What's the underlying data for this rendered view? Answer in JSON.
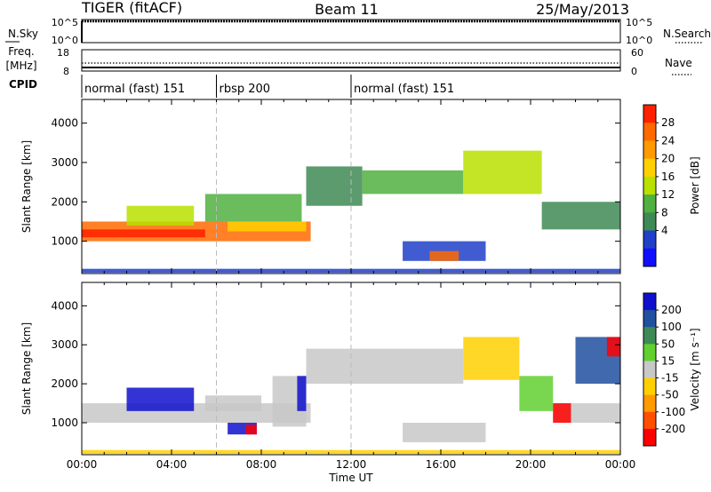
{
  "header": {
    "radar": "TIGER (fitACF)",
    "beam": "Beam 11",
    "date": "25/May/2013"
  },
  "noise_panel": {
    "left_label": "N.Sky",
    "right_label": "N.Search",
    "left_ticks": [
      "10^5",
      "10^0"
    ],
    "right_ticks": [
      "10^5",
      "10^0"
    ]
  },
  "freq_panel": {
    "left_label_1": "Freq.",
    "left_label_2": "[MHz]",
    "left_ticks": [
      "18",
      "8"
    ],
    "right_label": "Nave",
    "right_ticks": [
      "60",
      "0"
    ]
  },
  "cpid": {
    "label": "CPID",
    "segments": [
      {
        "start_hour": 0,
        "end_hour": 6,
        "text": "normal (fast) 151"
      },
      {
        "start_hour": 6,
        "end_hour": 12,
        "text": "rbsp 200"
      },
      {
        "start_hour": 12,
        "end_hour": 24,
        "text": "normal (fast) 151"
      }
    ]
  },
  "chart_data": [
    {
      "type": "heatmap",
      "name": "power",
      "ylabel": "Slant Range [km]",
      "xlabel": "",
      "xlim": [
        0,
        24
      ],
      "ylim": [
        180,
        4600
      ],
      "y_ticks": [
        1000,
        2000,
        3000,
        4000
      ],
      "colorbar_label": "Power [dB]",
      "colorbar_ticks": [
        "28",
        "24",
        "20",
        "16",
        "12",
        "8",
        "4"
      ],
      "colorbar_colors": [
        "#ff2000",
        "#ff6a00",
        "#ff9a00",
        "#ffd000",
        "#b8e000",
        "#50b040",
        "#3e8a55",
        "#2040c8",
        "#1010ff"
      ],
      "bands": [
        {
          "x0": 0.0,
          "x1": 10.2,
          "y0": 1000,
          "y1": 1500,
          "color": "#ff6a00"
        },
        {
          "x0": 0.0,
          "x1": 5.5,
          "y0": 1100,
          "y1": 1300,
          "color": "#ff2000"
        },
        {
          "x0": 2.0,
          "x1": 5.0,
          "y0": 1400,
          "y1": 1900,
          "color": "#b8e000"
        },
        {
          "x0": 5.5,
          "x1": 9.8,
          "y0": 1500,
          "y1": 2200,
          "color": "#50b040"
        },
        {
          "x0": 6.5,
          "x1": 10.0,
          "y0": 1250,
          "y1": 1500,
          "color": "#ffd000"
        },
        {
          "x0": 10.0,
          "x1": 12.5,
          "y0": 1900,
          "y1": 2900,
          "color": "#3e8a55"
        },
        {
          "x0": 12.5,
          "x1": 17.0,
          "y0": 2200,
          "y1": 2800,
          "color": "#50b040"
        },
        {
          "x0": 17.0,
          "x1": 20.5,
          "y0": 2200,
          "y1": 3300,
          "color": "#b8e000"
        },
        {
          "x0": 20.5,
          "x1": 24.0,
          "y0": 1300,
          "y1": 2000,
          "color": "#3e8a55"
        },
        {
          "x0": 14.3,
          "x1": 18.0,
          "y0": 500,
          "y1": 1000,
          "color": "#2040c8"
        },
        {
          "x0": 15.5,
          "x1": 16.8,
          "y0": 500,
          "y1": 750,
          "color": "#ff6a00"
        },
        {
          "x0": 0.0,
          "x1": 24.0,
          "y0": 200,
          "y1": 300,
          "color": "#2040c8"
        }
      ]
    },
    {
      "type": "heatmap",
      "name": "velocity",
      "ylabel": "Slant Range [km]",
      "xlabel": "Time UT",
      "xlim": [
        0,
        24
      ],
      "ylim": [
        180,
        4600
      ],
      "y_ticks": [
        1000,
        2000,
        3000,
        4000
      ],
      "x_tick_labels": [
        "00:00",
        "04:00",
        "08:00",
        "12:00",
        "16:00",
        "20:00",
        "00:00"
      ],
      "colorbar_label": "Velocity [m s⁻¹]",
      "colorbar_ticks": [
        "200",
        "100",
        "50",
        "15",
        "-15",
        "-50",
        "-100",
        "-200"
      ],
      "colorbar_colors": [
        "#1010cc",
        "#2050a0",
        "#3e8a55",
        "#60d030",
        "#c8c8c8",
        "#ffd000",
        "#ff9a00",
        "#ff5000",
        "#ff0000"
      ],
      "bands": [
        {
          "x0": 0.0,
          "x1": 10.2,
          "y0": 1000,
          "y1": 1500,
          "color": "#c8c8c8"
        },
        {
          "x0": 2.0,
          "x1": 5.0,
          "y0": 1300,
          "y1": 1900,
          "color": "#1010cc"
        },
        {
          "x0": 5.5,
          "x1": 8.0,
          "y0": 1300,
          "y1": 1700,
          "color": "#c8c8c8"
        },
        {
          "x0": 6.5,
          "x1": 7.8,
          "y0": 700,
          "y1": 1000,
          "color": "#1010cc"
        },
        {
          "x0": 7.3,
          "x1": 7.8,
          "y0": 700,
          "y1": 950,
          "color": "#ff0000"
        },
        {
          "x0": 8.5,
          "x1": 10.0,
          "y0": 900,
          "y1": 2200,
          "color": "#c8c8c8"
        },
        {
          "x0": 9.6,
          "x1": 10.0,
          "y0": 1300,
          "y1": 2200,
          "color": "#1010cc"
        },
        {
          "x0": 10.0,
          "x1": 17.0,
          "y0": 2000,
          "y1": 2900,
          "color": "#c8c8c8"
        },
        {
          "x0": 17.0,
          "x1": 19.5,
          "y0": 2100,
          "y1": 3200,
          "color": "#ffd000"
        },
        {
          "x0": 19.5,
          "x1": 21.0,
          "y0": 1300,
          "y1": 2200,
          "color": "#60d030"
        },
        {
          "x0": 21.0,
          "x1": 24.0,
          "y0": 1000,
          "y1": 1500,
          "color": "#c8c8c8"
        },
        {
          "x0": 21.0,
          "x1": 21.8,
          "y0": 1000,
          "y1": 1500,
          "color": "#ff0000"
        },
        {
          "x0": 22.0,
          "x1": 24.0,
          "y0": 2000,
          "y1": 3200,
          "color": "#2050a0"
        },
        {
          "x0": 23.4,
          "x1": 24.0,
          "y0": 2700,
          "y1": 3200,
          "color": "#ff0000"
        },
        {
          "x0": 14.3,
          "x1": 18.0,
          "y0": 500,
          "y1": 1000,
          "color": "#c8c8c8"
        },
        {
          "x0": 0.0,
          "x1": 24.0,
          "y0": 200,
          "y1": 300,
          "color": "#ffd000"
        }
      ]
    }
  ]
}
